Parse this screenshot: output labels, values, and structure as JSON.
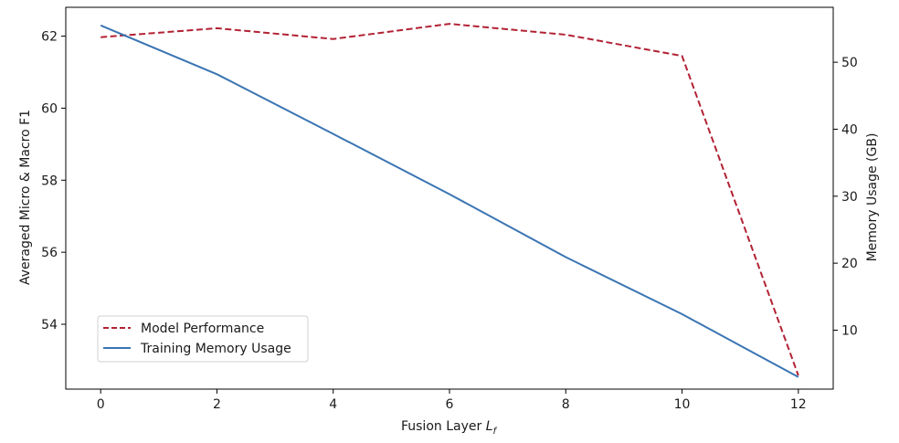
{
  "chart_data": {
    "type": "line",
    "title": "",
    "xlabel": "Fusion Layer",
    "xlabel_math": "L",
    "xlabel_math_sub": "f",
    "ylabel_left": "Averaged Micro & Macro F1",
    "ylabel_right": "Memory Usage (GB)",
    "x": [
      0,
      2,
      4,
      6,
      8,
      10,
      12
    ],
    "xlim": [
      -0.6,
      12.6
    ],
    "ylim_left": [
      52.2,
      62.8
    ],
    "ylim_right": [
      1.2,
      58.2
    ],
    "xticks": [
      0,
      2,
      4,
      6,
      8,
      10,
      12
    ],
    "yticks_left": [
      54,
      56,
      58,
      60,
      62
    ],
    "yticks_right": [
      10,
      20,
      30,
      40,
      50
    ],
    "series": [
      {
        "name": "Model Performance",
        "axis": "left",
        "style": "dashed",
        "color": "#b22234",
        "values": [
          61.97,
          62.22,
          61.92,
          62.34,
          62.04,
          61.45,
          52.58
        ]
      },
      {
        "name": "Training Memory Usage",
        "axis": "right",
        "style": "solid",
        "color": "#3a75b3",
        "values": [
          55.5,
          48.2,
          39.3,
          30.3,
          20.9,
          12.4,
          3.0
        ]
      }
    ],
    "legend_position": "lower-left",
    "grid": false
  }
}
